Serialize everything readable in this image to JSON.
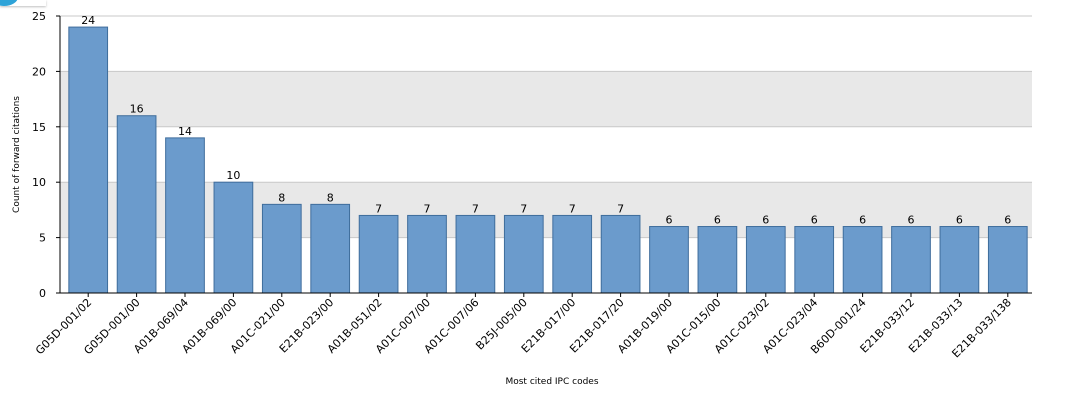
{
  "chart_data": {
    "type": "bar",
    "title": "",
    "xlabel": "Most cited IPC codes",
    "ylabel": "Count of forward citations",
    "ylim": [
      0,
      25
    ],
    "yticks": [
      0,
      5,
      10,
      15,
      20,
      25
    ],
    "grid": true,
    "legend": "none",
    "bar_color": "#6b9bcc",
    "bar_edge_color": "#3f6d9c",
    "band_color": "#e8e8e8",
    "categories": [
      "G05D-001/02",
      "G05D-001/00",
      "A01B-069/04",
      "A01B-069/00",
      "A01C-021/00",
      "E21B-023/00",
      "A01B-051/02",
      "A01C-007/00",
      "A01C-007/06",
      "B25J-005/00",
      "E21B-017/00",
      "E21B-017/20",
      "A01B-019/00",
      "A01C-015/00",
      "A01C-023/02",
      "A01C-023/04",
      "B60D-001/24",
      "E21B-033/12",
      "E21B-033/13",
      "E21B-033/138"
    ],
    "values": [
      24,
      16,
      14,
      10,
      8,
      8,
      7,
      7,
      7,
      7,
      7,
      7,
      6,
      6,
      6,
      6,
      6,
      6,
      6,
      6
    ]
  }
}
